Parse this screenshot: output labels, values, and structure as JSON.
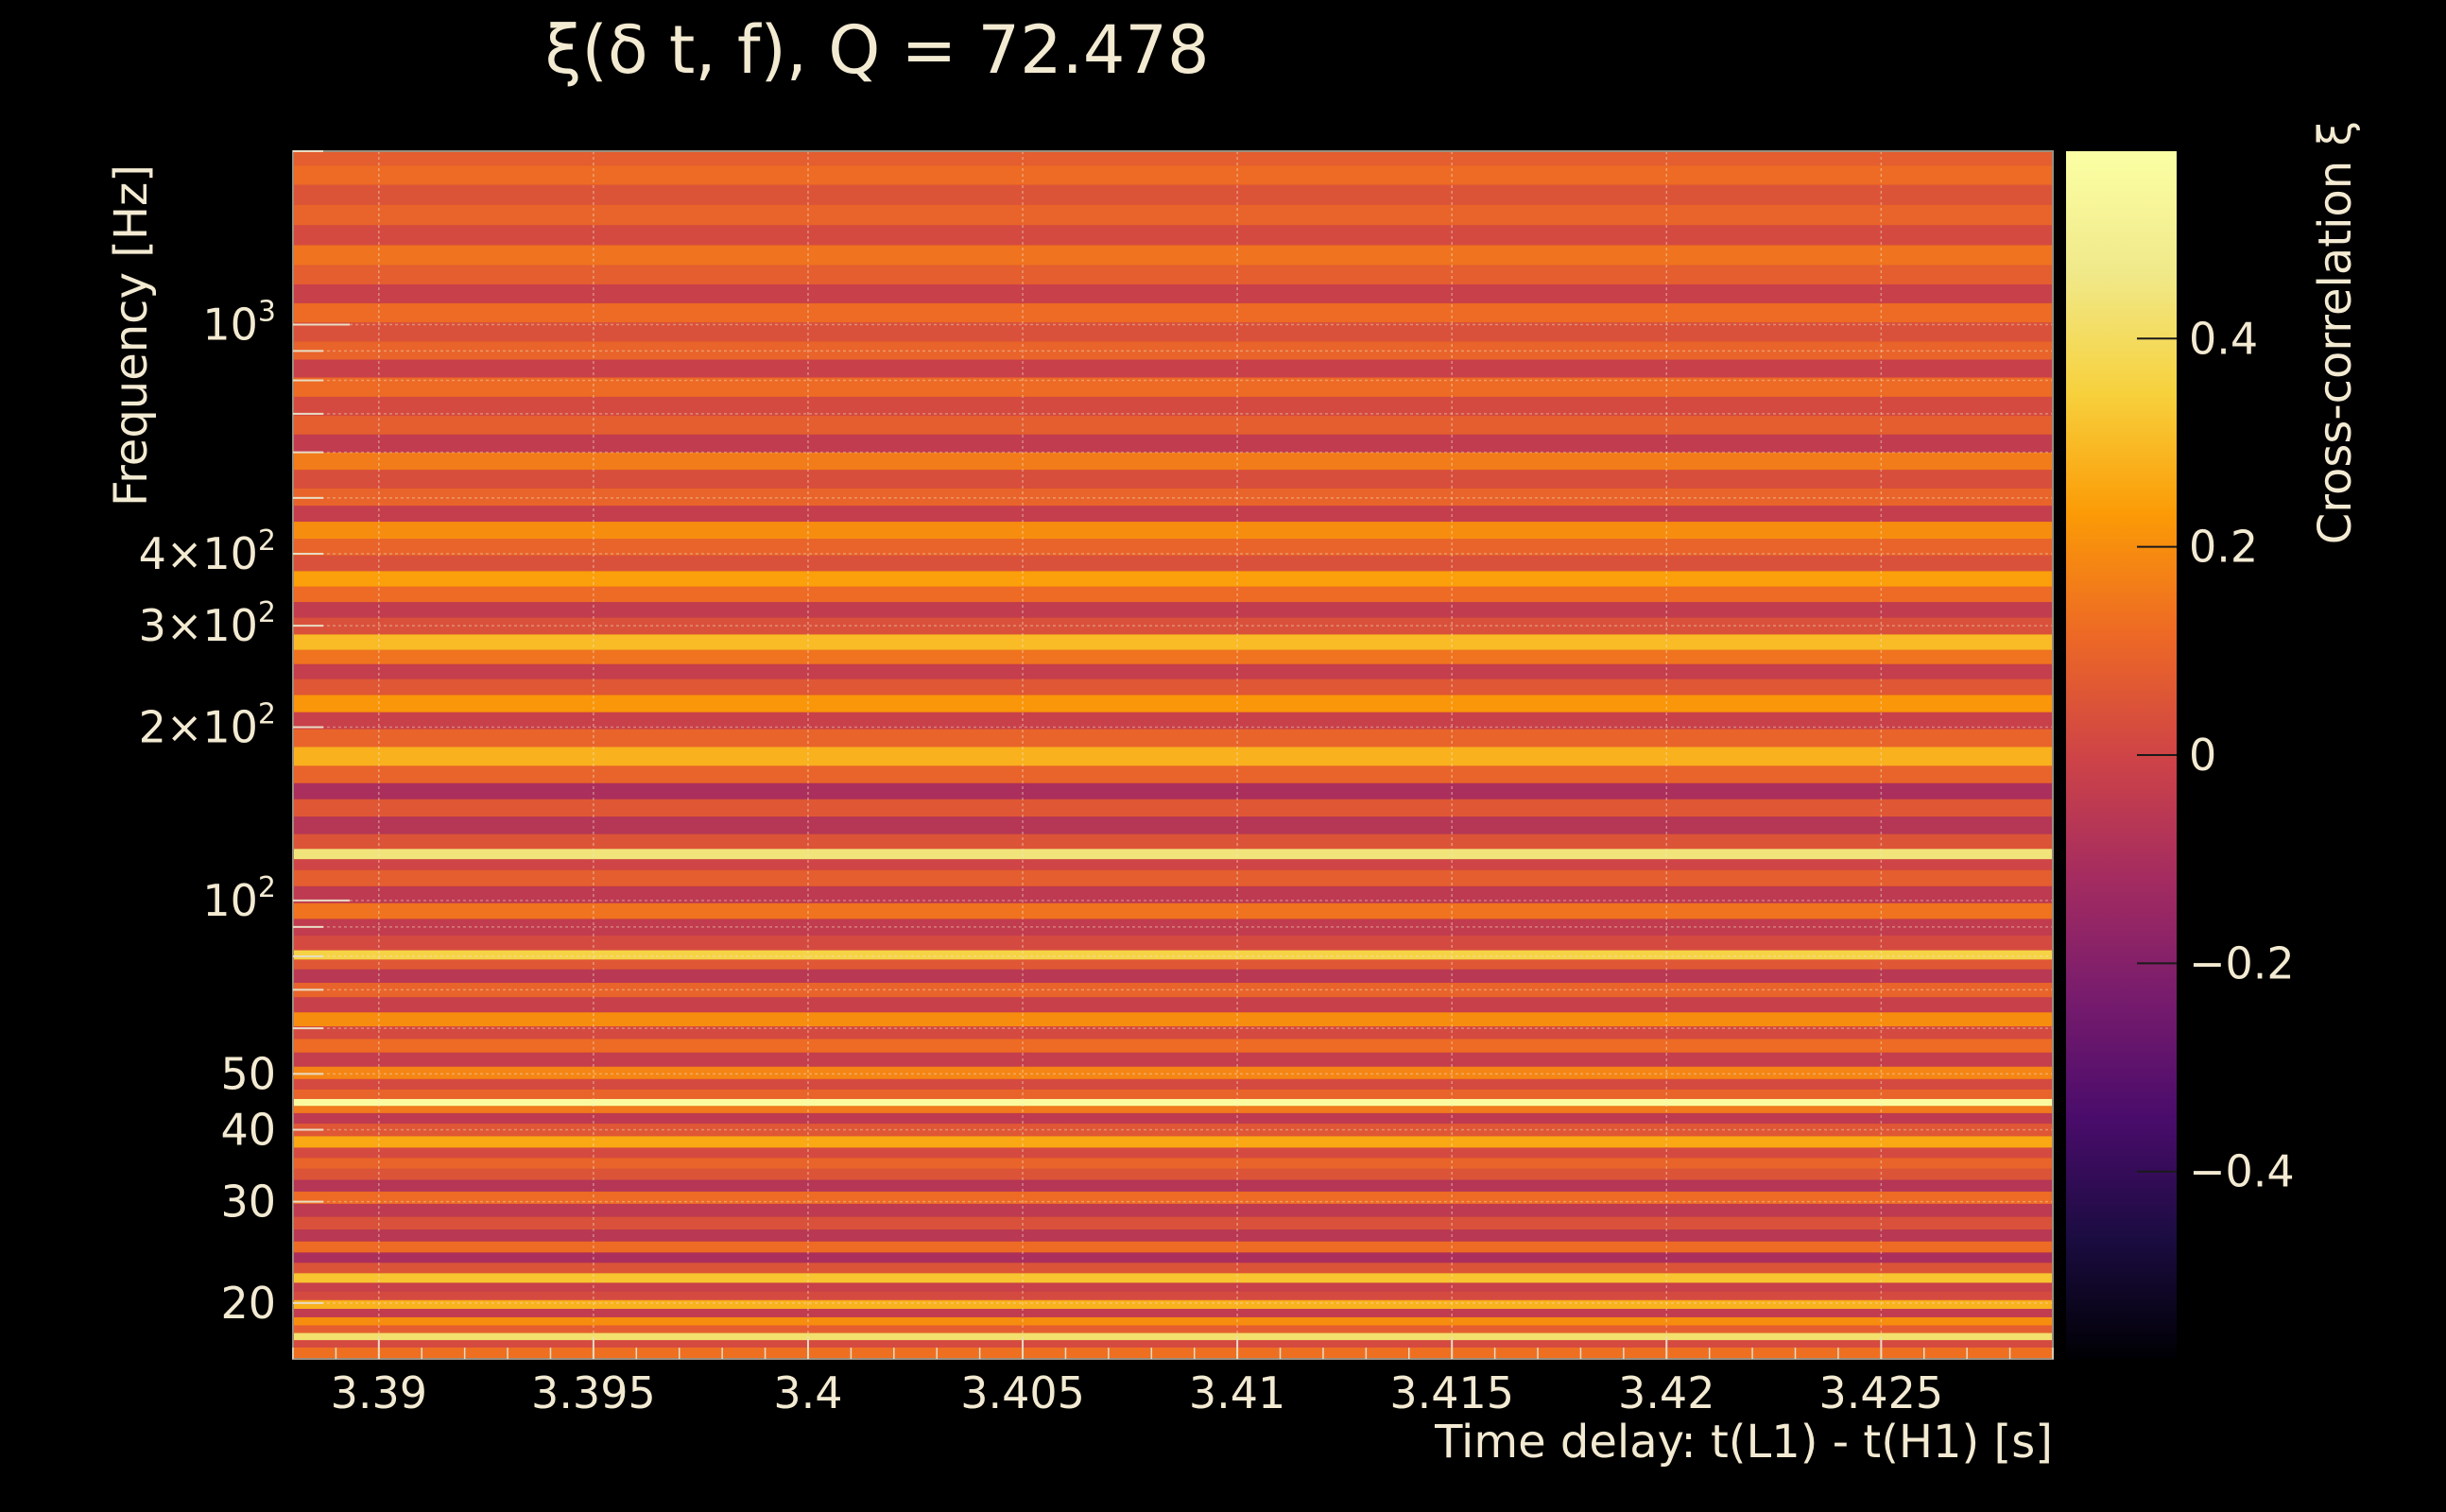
{
  "chart_data": {
    "type": "heatmap",
    "title": "ξ(δ t, f), Q = 72.478",
    "xlabel": "Time delay: t(L1) - t(H1) [s]",
    "ylabel": "Frequency [Hz]",
    "colorbar_label": "Cross-correlation ξ",
    "colormap": "inferno",
    "x_scale": "linear",
    "y_scale": "log",
    "xlim": [
      3.388,
      3.429
    ],
    "ylim": [
      16,
      2000
    ],
    "clim": [
      -0.58,
      0.58
    ],
    "grid": true,
    "x_ticks": [
      3.39,
      3.395,
      3.4,
      3.405,
      3.41,
      3.415,
      3.42,
      3.425
    ],
    "x_tick_labels": [
      "3.39",
      "3.395",
      "3.4",
      "3.405",
      "3.41",
      "3.415",
      "3.42",
      "3.425"
    ],
    "y_ticks": [
      {
        "value": 20,
        "base": "20",
        "exp": ""
      },
      {
        "value": 30,
        "base": "30",
        "exp": ""
      },
      {
        "value": 40,
        "base": "40",
        "exp": ""
      },
      {
        "value": 50,
        "base": "50",
        "exp": ""
      },
      {
        "value": 100,
        "base": "10",
        "exp": "2"
      },
      {
        "value": 200,
        "base": "2×10",
        "exp": "2"
      },
      {
        "value": 300,
        "base": "3×10",
        "exp": "2"
      },
      {
        "value": 400,
        "base": "4×10",
        "exp": "2"
      },
      {
        "value": 1000,
        "base": "10",
        "exp": "3"
      }
    ],
    "colorbar_ticks": [
      0.4,
      0.2,
      0,
      -0.2,
      -0.4
    ],
    "colorbar_tick_labels": [
      "0.4",
      "0.2",
      "0",
      "−0.2",
      "−0.4"
    ],
    "rows": [
      {
        "f": 16.5,
        "v": 0.13
      },
      {
        "f": 17.0,
        "v": 0.02
      },
      {
        "f": 17.5,
        "v": 0.42
      },
      {
        "f": 18.0,
        "v": 0.08
      },
      {
        "f": 18.6,
        "v": 0.2
      },
      {
        "f": 19.2,
        "v": -0.04
      },
      {
        "f": 19.9,
        "v": 0.28
      },
      {
        "f": 20.6,
        "v": 0.02
      },
      {
        "f": 21.3,
        "v": -0.02
      },
      {
        "f": 22.1,
        "v": 0.32
      },
      {
        "f": 23.0,
        "v": 0.05
      },
      {
        "f": 24.0,
        "v": -0.1
      },
      {
        "f": 25.0,
        "v": 0.12
      },
      {
        "f": 26.2,
        "v": -0.06
      },
      {
        "f": 27.5,
        "v": 0.04
      },
      {
        "f": 29.0,
        "v": -0.05
      },
      {
        "f": 30.5,
        "v": 0.12
      },
      {
        "f": 32.0,
        "v": -0.07
      },
      {
        "f": 33.5,
        "v": 0.05
      },
      {
        "f": 35.0,
        "v": 0.1
      },
      {
        "f": 36.5,
        "v": 0.02
      },
      {
        "f": 38.0,
        "v": 0.26
      },
      {
        "f": 40.0,
        "v": 0.06
      },
      {
        "f": 42.0,
        "v": -0.05
      },
      {
        "f": 43.5,
        "v": 0.15
      },
      {
        "f": 44.5,
        "v": 0.56
      },
      {
        "f": 46.0,
        "v": 0.1
      },
      {
        "f": 48.0,
        "v": 0.02
      },
      {
        "f": 50.0,
        "v": 0.18
      },
      {
        "f": 53.0,
        "v": -0.03
      },
      {
        "f": 56.0,
        "v": 0.12
      },
      {
        "f": 59.0,
        "v": 0.02
      },
      {
        "f": 62.0,
        "v": 0.2
      },
      {
        "f": 66.0,
        "v": -0.02
      },
      {
        "f": 70.0,
        "v": 0.1
      },
      {
        "f": 74.0,
        "v": -0.06
      },
      {
        "f": 78.0,
        "v": 0.06
      },
      {
        "f": 80.0,
        "v": 0.36
      },
      {
        "f": 84.0,
        "v": 0.02
      },
      {
        "f": 90.0,
        "v": -0.04
      },
      {
        "f": 96.0,
        "v": 0.14
      },
      {
        "f": 102.0,
        "v": -0.05
      },
      {
        "f": 110.0,
        "v": 0.08
      },
      {
        "f": 116.0,
        "v": 0.0
      },
      {
        "f": 120.0,
        "v": 0.44
      },
      {
        "f": 126.0,
        "v": 0.05
      },
      {
        "f": 135.0,
        "v": -0.07
      },
      {
        "f": 145.0,
        "v": 0.06
      },
      {
        "f": 155.0,
        "v": -0.1
      },
      {
        "f": 165.0,
        "v": 0.1
      },
      {
        "f": 178.0,
        "v": 0.28
      },
      {
        "f": 192.0,
        "v": 0.1
      },
      {
        "f": 205.0,
        "v": -0.02
      },
      {
        "f": 220.0,
        "v": 0.22
      },
      {
        "f": 235.0,
        "v": 0.06
      },
      {
        "f": 250.0,
        "v": -0.03
      },
      {
        "f": 265.0,
        "v": 0.14
      },
      {
        "f": 280.0,
        "v": 0.3
      },
      {
        "f": 300.0,
        "v": 0.04
      },
      {
        "f": 320.0,
        "v": -0.04
      },
      {
        "f": 340.0,
        "v": 0.12
      },
      {
        "f": 362.0,
        "v": 0.24
      },
      {
        "f": 385.0,
        "v": 0.04
      },
      {
        "f": 410.0,
        "v": 0.1
      },
      {
        "f": 440.0,
        "v": 0.2
      },
      {
        "f": 470.0,
        "v": -0.03
      },
      {
        "f": 500.0,
        "v": 0.1
      },
      {
        "f": 540.0,
        "v": 0.03
      },
      {
        "f": 580.0,
        "v": 0.16
      },
      {
        "f": 620.0,
        "v": -0.04
      },
      {
        "f": 670.0,
        "v": 0.08
      },
      {
        "f": 720.0,
        "v": 0.02
      },
      {
        "f": 780.0,
        "v": 0.12
      },
      {
        "f": 840.0,
        "v": -0.02
      },
      {
        "f": 900.0,
        "v": 0.1
      },
      {
        "f": 970.0,
        "v": 0.04
      },
      {
        "f": 1050.0,
        "v": 0.12
      },
      {
        "f": 1130.0,
        "v": -0.02
      },
      {
        "f": 1220.0,
        "v": 0.08
      },
      {
        "f": 1320.0,
        "v": 0.14
      },
      {
        "f": 1430.0,
        "v": 0.02
      },
      {
        "f": 1550.0,
        "v": 0.1
      },
      {
        "f": 1680.0,
        "v": 0.05
      },
      {
        "f": 1820.0,
        "v": 0.12
      },
      {
        "f": 1960.0,
        "v": 0.08
      }
    ]
  }
}
